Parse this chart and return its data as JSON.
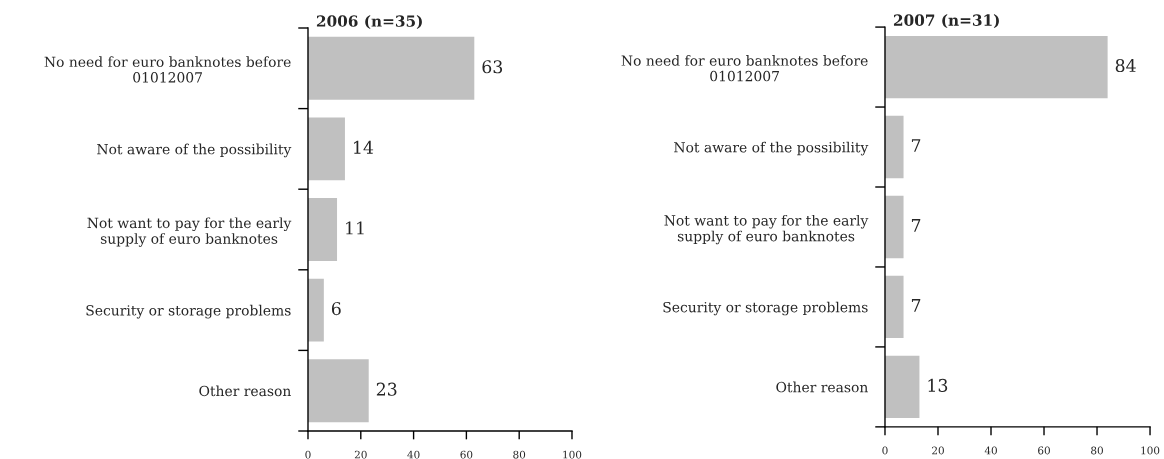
{
  "chart_data": [
    {
      "type": "bar",
      "orientation": "horizontal",
      "title": "2006 (n=35)",
      "categories": [
        "No need for euro banknotes before\n01012007",
        "Not aware of the possibility",
        "Not want to pay for the early\nsupply of euro banknotes",
        "Security or storage problems",
        "Other reason"
      ],
      "values": [
        63,
        14,
        11,
        6,
        23
      ],
      "color": "#c0c0c0",
      "xlim": [
        0,
        100
      ],
      "xticks": [
        0,
        20,
        40,
        60,
        80,
        100
      ],
      "data_labels": true
    },
    {
      "type": "bar",
      "orientation": "horizontal",
      "title": "2007 (n=31)",
      "categories": [
        "No need for euro banknotes before\n01012007",
        "Not aware of the possibility",
        "Not want to pay for the early\nsupply of euro banknotes",
        "Security or storage problems",
        "Other reason"
      ],
      "values": [
        84,
        7,
        7,
        7,
        13
      ],
      "color": "#c0c0c0",
      "xlim": [
        0,
        100
      ],
      "xticks": [
        0,
        20,
        40,
        60,
        80,
        100
      ],
      "data_labels": true
    }
  ]
}
